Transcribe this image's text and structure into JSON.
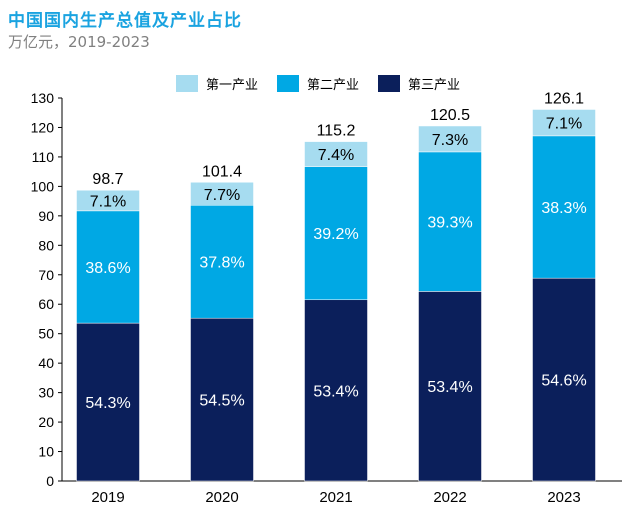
{
  "chart_data": {
    "type": "bar",
    "stacked": true,
    "title": "中国国内生产总值及产业占比",
    "subtitle": "万亿元，2019-2023",
    "categories": [
      "2019",
      "2020",
      "2021",
      "2022",
      "2023"
    ],
    "totals": [
      98.7,
      101.4,
      115.2,
      120.5,
      126.1
    ],
    "total_labels": [
      "98.7",
      "101.4",
      "115.2",
      "120.5",
      "126.1"
    ],
    "series": [
      {
        "name": "第三产业",
        "color": "#0b1f5b",
        "shares": [
          54.3,
          54.5,
          53.4,
          53.4,
          54.6
        ],
        "labels": [
          "54.3%",
          "54.5%",
          "53.4%",
          "53.4%",
          "54.6%"
        ],
        "label_color": "#ffffff"
      },
      {
        "name": "第二产业",
        "color": "#00a8e4",
        "shares": [
          38.6,
          37.8,
          39.2,
          39.3,
          38.3
        ],
        "labels": [
          "38.6%",
          "37.8%",
          "39.2%",
          "39.3%",
          "38.3%"
        ],
        "label_color": "#ffffff"
      },
      {
        "name": "第一产业",
        "color": "#a6dcf0",
        "shares": [
          7.1,
          7.7,
          7.4,
          7.3,
          7.1
        ],
        "labels": [
          "7.1%",
          "7.7%",
          "7.4%",
          "7.3%",
          "7.1%"
        ],
        "label_color": "#000000"
      }
    ],
    "legend": [
      "第一产业",
      "第二产业",
      "第三产业"
    ],
    "legend_placement": "top",
    "ylim": [
      0,
      130
    ],
    "yticks": [
      "0",
      "10",
      "20",
      "30",
      "40",
      "50",
      "60",
      "70",
      "80",
      "90",
      "100",
      "110",
      "120",
      "130"
    ],
    "grid": false,
    "xlabel": "",
    "ylabel": ""
  }
}
